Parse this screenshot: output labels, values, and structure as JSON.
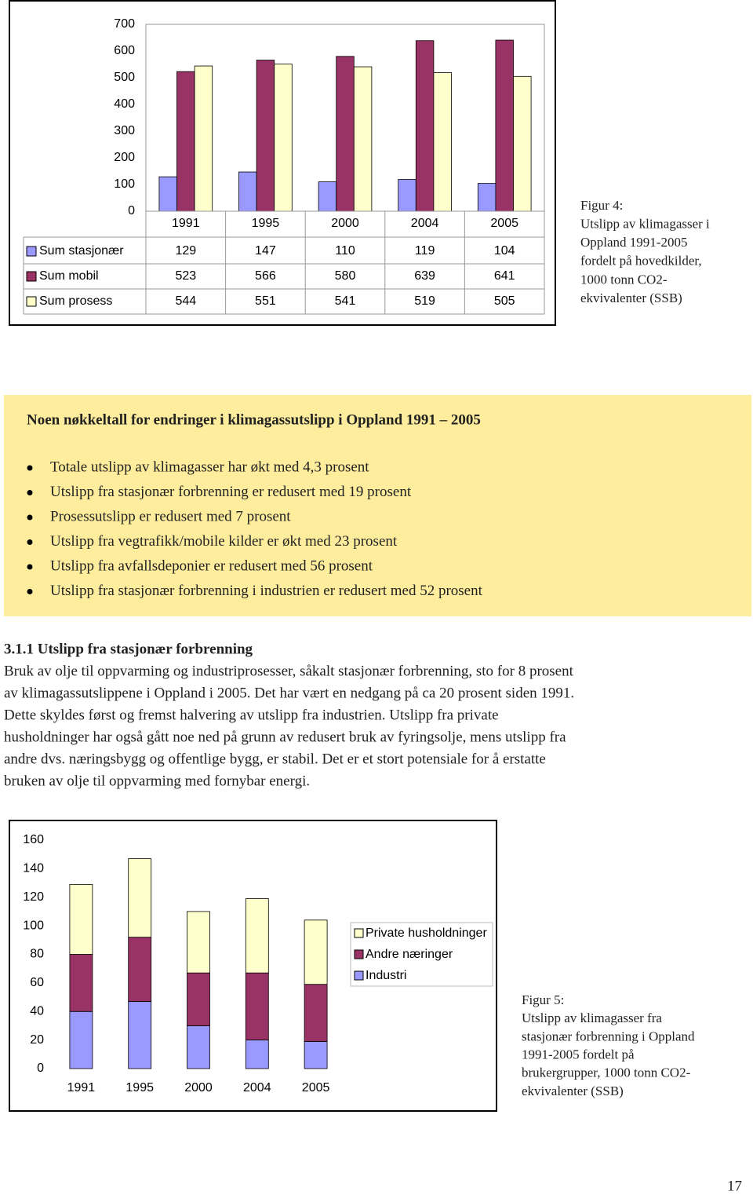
{
  "chart_data": [
    {
      "type": "bar",
      "data_table": true,
      "categories": [
        "1991",
        "1995",
        "2000",
        "2004",
        "2005"
      ],
      "series": [
        {
          "name": "Sum stasjonær",
          "color": "#9999ff",
          "values": [
            129,
            147,
            110,
            119,
            104
          ]
        },
        {
          "name": "Sum mobil",
          "color": "#993366",
          "values": [
            523,
            566,
            580,
            639,
            641
          ]
        },
        {
          "name": "Sum prosess",
          "color": "#ffffcc",
          "values": [
            544,
            551,
            541,
            519,
            505
          ]
        }
      ],
      "ylim": [
        0,
        700
      ],
      "yticks": [
        0,
        100,
        200,
        300,
        400,
        500,
        600,
        700
      ]
    },
    {
      "type": "bar",
      "stacked": true,
      "legend": "right",
      "categories": [
        "1991",
        "1995",
        "2000",
        "2004",
        "2005"
      ],
      "series": [
        {
          "name": "Industri",
          "color": "#9999ff",
          "values": [
            40,
            47,
            30,
            20,
            19
          ]
        },
        {
          "name": "Andre næringer",
          "color": "#993366",
          "values": [
            40,
            45,
            37,
            47,
            40
          ]
        },
        {
          "name": "Private husholdninger",
          "color": "#ffffcc",
          "values": [
            49,
            55,
            43,
            52,
            45
          ]
        }
      ],
      "ylim": [
        0,
        160
      ],
      "yticks": [
        0,
        20,
        40,
        60,
        80,
        100,
        120,
        140,
        160
      ]
    }
  ],
  "figure4_caption": [
    "Figur 4:",
    "Utslipp av klimagasser i",
    "Oppland 1991-2005",
    "fordelt på hovedkilder,",
    "1000 tonn CO2-",
    "ekvivalenter (SSB)"
  ],
  "key_figures": {
    "title": "Noen nøkkeltall for endringer i klimagassutslipp i Oppland 1991 – 2005",
    "items": [
      "Totale utslipp av klimagasser har økt med 4,3 prosent",
      "Utslipp fra stasjonær forbrenning er redusert med 19 prosent",
      "Prosessutslipp er redusert med 7 prosent",
      "Utslipp fra vegtrafikk/mobile kilder er økt med 23 prosent",
      "Utslipp fra avfallsdeponier er redusert med 56 prosent",
      "Utslipp fra stasjonær forbrenning i industrien er redusert med 52 prosent"
    ]
  },
  "section": {
    "heading": "3.1.1 Utslipp fra stasjonær forbrenning",
    "lines": [
      "Bruk av olje til oppvarming og industriprosesser, såkalt stasjonær forbrenning, sto for 8 prosent",
      "av klimagassutslippene i Oppland i 2005. Det har vært en nedgang på ca 20 prosent siden 1991.",
      "Dette skyldes først og fremst halvering av utslipp fra industrien. Utslipp fra private",
      "husholdninger har også gått noe ned på grunn av redusert bruk av fyringsolje, mens utslipp fra",
      "andre dvs. næringsbygg og offentlige bygg, er stabil. Det er et stort potensiale for å erstatte",
      "bruken av olje til oppvarming med fornybar energi."
    ]
  },
  "figure5_caption": [
    "Figur 5:",
    "Utslipp av klimagasser fra",
    "stasjonær forbrenning i Oppland",
    "1991-2005 fordelt på",
    "brukergrupper, 1000 tonn CO2-",
    "ekvivalenter (SSB)"
  ],
  "page_number": "17"
}
